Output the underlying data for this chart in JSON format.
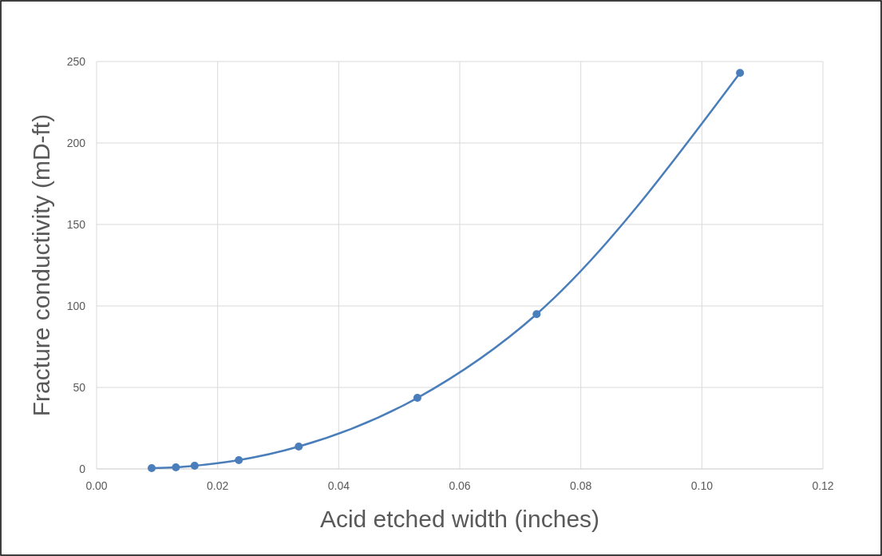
{
  "chart_data": {
    "type": "line",
    "xlabel": "Acid etched width (inches)",
    "ylabel": "Fracture conductivity (mD-ft)",
    "x": [
      0.0091,
      0.0131,
      0.0162,
      0.0235,
      0.0334,
      0.053,
      0.0727,
      0.1063
    ],
    "series": [
      {
        "color": "#4a7ebb",
        "values": [
          0.5,
          1,
          2,
          5.4,
          13.7,
          43.6,
          95,
          243
        ]
      }
    ],
    "xlim": [
      0,
      0.12
    ],
    "xticks": [
      {
        "value": 0,
        "label": "0.00"
      },
      {
        "value": 0.02,
        "label": "0.02"
      },
      {
        "value": 0.04,
        "label": "0.04"
      },
      {
        "value": 0.06,
        "label": "0.06"
      },
      {
        "value": 0.08,
        "label": "0.08"
      },
      {
        "value": 0.1,
        "label": "0.10"
      },
      {
        "value": 0.12,
        "label": "0.12"
      }
    ],
    "ylim": [
      0,
      250
    ],
    "yticks": [
      0,
      50,
      100,
      150,
      200,
      250
    ],
    "grid": true,
    "marker": "circle",
    "line_style": "solid"
  }
}
